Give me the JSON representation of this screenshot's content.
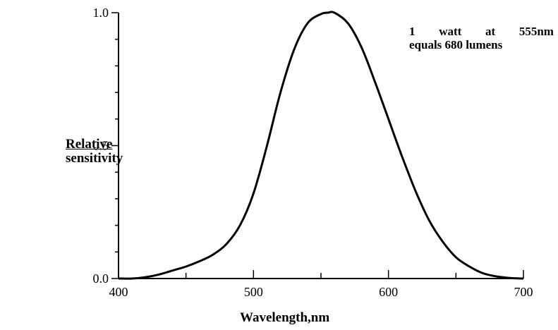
{
  "chart_data": {
    "type": "line",
    "title": "",
    "xlabel": "Wavelength,nm",
    "ylabel": [
      "Relative",
      "sensitivity"
    ],
    "annotation": [
      "1 watt at 555nm",
      "equals 680 lumens"
    ],
    "xlim": [
      400,
      700
    ],
    "ylim": [
      0,
      1.0
    ],
    "x_ticks": [
      400,
      500,
      600,
      700
    ],
    "x_tick_labels": [
      "400",
      "500",
      "600",
      "700"
    ],
    "y_ticks": [
      0.0,
      0.5,
      1.0
    ],
    "y_tick_labels": [
      "0.0",
      "0.5",
      "1.0"
    ],
    "grid": false,
    "series": [
      {
        "x": [
          400,
          410,
          420,
          430,
          440,
          450,
          460,
          470,
          480,
          490,
          500,
          510,
          520,
          530,
          540,
          550,
          555,
          560,
          570,
          580,
          590,
          600,
          610,
          620,
          630,
          640,
          650,
          660,
          670,
          680,
          690,
          700
        ],
        "y": [
          0.0,
          0.0,
          0.005,
          0.015,
          0.03,
          0.045,
          0.065,
          0.09,
          0.13,
          0.2,
          0.32,
          0.5,
          0.7,
          0.86,
          0.96,
          0.995,
          1.0,
          1.0,
          0.96,
          0.87,
          0.74,
          0.6,
          0.46,
          0.33,
          0.22,
          0.14,
          0.08,
          0.045,
          0.02,
          0.008,
          0.002,
          0.0
        ]
      }
    ]
  }
}
